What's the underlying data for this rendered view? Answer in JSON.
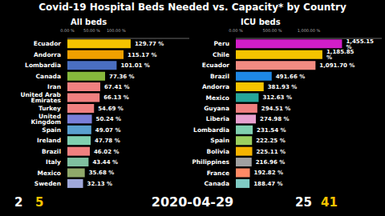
{
  "title": "Covid-19 Hospital Beds Needed vs. Capacity* by Country",
  "date": "2020-04-29",
  "chart_data": [
    {
      "type": "bar",
      "orientation": "horizontal",
      "title": "All beds",
      "categories": [
        "Ecuador",
        "Andorra",
        "Lombardia",
        "Canada",
        "Iran",
        "United Arab Emirates",
        "Turkey",
        "United Kingdom",
        "Spain",
        "Ireland",
        "Brazil",
        "Italy",
        "Mexico",
        "Sweden"
      ],
      "values": [
        129.77,
        115.17,
        101.01,
        77.36,
        67.41,
        66.13,
        54.69,
        50.24,
        49.07,
        47.78,
        46.02,
        43.44,
        35.68,
        32.13
      ],
      "value_labels": [
        "129.77 %",
        "115.17 %",
        "101.01 %",
        "77.36 %",
        "67.41 %",
        "66.13 %",
        "54.69 %",
        "50.24 %",
        "49.07 %",
        "47.78 %",
        "46.02 %",
        "43.44 %",
        "35.68 %",
        "32.13 %"
      ],
      "colors": [
        "#f5c400",
        "#f0a000",
        "#4a6fc1",
        "#86b83c",
        "#f08080",
        "#f08080",
        "#f08080",
        "#7a7fd9",
        "#5aa0d0",
        "#80d0b0",
        "#f08080",
        "#7fc0a0",
        "#8fa86a",
        "#9fa8da"
      ],
      "xlim": [
        0,
        250
      ],
      "xticks": [
        {
          "value": 0,
          "label": "0.00 %"
        },
        {
          "value": 50,
          "label": "50.00 %"
        },
        {
          "value": 100,
          "label": "100.00 %"
        }
      ],
      "data_labels": true,
      "grid": false,
      "counts": [
        2,
        5
      ]
    },
    {
      "type": "bar",
      "orientation": "horizontal",
      "title": "ICU beds",
      "categories": [
        "Peru",
        "Chile",
        "Ecuador",
        "Brazil",
        "Andorra",
        "Mexico",
        "Guyana",
        "Liberia",
        "Lombardia",
        "Spain",
        "Bolivia",
        "Philippines",
        "France",
        "Canada"
      ],
      "values": [
        1455.15,
        1185.85,
        1091.7,
        491.66,
        381.93,
        312.63,
        294.51,
        274.98,
        231.54,
        222.25,
        225.11,
        216.96,
        192.82,
        188.47
      ],
      "value_labels": [
        "1,455.15 %",
        "1,185.85 %",
        "1,091.70 %",
        "491.66 %",
        "381.93 %",
        "312.63 %",
        "294.51 %",
        "274.98 %",
        "231.54 %",
        "222.25 %",
        "225.11 %",
        "216.96 %",
        "192.82 %",
        "188.47 %"
      ],
      "colors": [
        "#d11ec9",
        "#f5c400",
        "#f28b82",
        "#1e88e5",
        "#f5c400",
        "#26a69a",
        "#f08080",
        "#e8a0d0",
        "#80d0b0",
        "#9bd060",
        "#f5b400",
        "#a0a0a0",
        "#ff8a65",
        "#80cbc4"
      ],
      "xlim": [
        0,
        2000
      ],
      "xticks": [
        {
          "value": 0,
          "label": "0.00 %"
        },
        {
          "value": 500,
          "label": "500.00 %"
        },
        {
          "value": 1000,
          "label": "1,000.00 %"
        }
      ],
      "data_labels": true,
      "grid": false,
      "counts": [
        25,
        41
      ]
    }
  ]
}
